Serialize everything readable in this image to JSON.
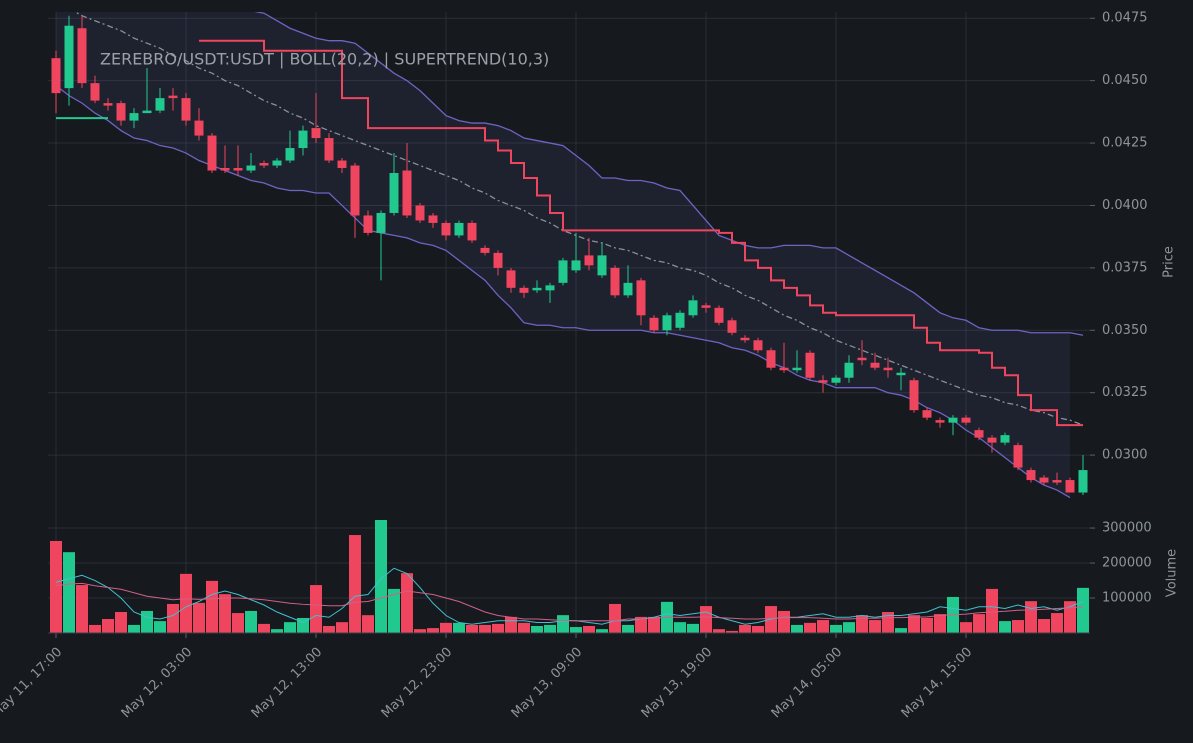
{
  "chart_data": [
    {
      "type": "candlestick",
      "title": "ZEREBRO/USDT:USDT | BOLL(20,2) | SUPERTREND(10,3)",
      "ylabel": "Price",
      "up_color": "#22c98e",
      "down_color": "#f0455f",
      "ylim": [
        0.0274,
        0.04775
      ],
      "yticks": [
        {
          "value": 0.03,
          "label": "0.0300"
        },
        {
          "value": 0.0325,
          "label": "0.0325"
        },
        {
          "value": 0.035,
          "label": "0.0350"
        },
        {
          "value": 0.0375,
          "label": "0.0375"
        },
        {
          "value": 0.04,
          "label": "0.0400"
        },
        {
          "value": 0.0425,
          "label": "0.0425"
        },
        {
          "value": 0.045,
          "label": "0.0450"
        },
        {
          "value": 0.0475,
          "label": "0.0475"
        }
      ],
      "xticks": [
        {
          "value": 0,
          "label": "May 11, 17:00"
        },
        {
          "value": 10,
          "label": "May 12, 03:00"
        },
        {
          "value": 20,
          "label": "May 12, 13:00"
        },
        {
          "value": 30,
          "label": "May 12, 23:00"
        },
        {
          "value": 40,
          "label": "May 13, 09:00"
        },
        {
          "value": 50,
          "label": "May 13, 19:00"
        },
        {
          "value": 60,
          "label": "May 14, 05:00"
        },
        {
          "value": 70,
          "label": "May 14, 15:00"
        }
      ],
      "grid": true,
      "open": [
        0.0459,
        0.0447,
        0.0471,
        0.0449,
        0.0441,
        0.0441,
        0.0434,
        0.0437,
        0.0438,
        0.0444,
        0.0443,
        0.0434,
        0.0428,
        0.0415,
        0.0415,
        0.0414,
        0.0417,
        0.0416,
        0.0418,
        0.0423,
        0.0431,
        0.0427,
        0.0418,
        0.0416,
        0.0396,
        0.0389,
        0.0397,
        0.0414,
        0.04,
        0.0396,
        0.0393,
        0.0388,
        0.0393,
        0.0383,
        0.0381,
        0.0374,
        0.0367,
        0.0366,
        0.0366,
        0.0369,
        0.0374,
        0.038,
        0.0372,
        0.0375,
        0.0364,
        0.037,
        0.0355,
        0.035,
        0.0351,
        0.0356,
        0.036,
        0.0359,
        0.0354,
        0.0347,
        0.0346,
        0.0342,
        0.0335,
        0.0334,
        0.0341,
        0.033,
        0.0329,
        0.0331,
        0.0339,
        0.0337,
        0.0335,
        0.0332,
        0.033,
        0.0318,
        0.0314,
        0.0313,
        0.0315,
        0.031,
        0.0307,
        0.0305,
        0.0304,
        0.0294,
        0.0291,
        0.029,
        0.029,
        0.0285
      ],
      "high": [
        0.0462,
        0.0476,
        0.0476,
        0.0452,
        0.0443,
        0.0442,
        0.0439,
        0.0455,
        0.0447,
        0.0447,
        0.0445,
        0.0439,
        0.0429,
        0.0424,
        0.0424,
        0.0421,
        0.0418,
        0.0419,
        0.043,
        0.0432,
        0.0445,
        0.0429,
        0.0419,
        0.0417,
        0.0398,
        0.0398,
        0.0421,
        0.0425,
        0.0401,
        0.0397,
        0.0394,
        0.0394,
        0.0394,
        0.0384,
        0.0382,
        0.0375,
        0.0368,
        0.037,
        0.0369,
        0.0379,
        0.0389,
        0.0387,
        0.0385,
        0.0376,
        0.0376,
        0.0371,
        0.0356,
        0.0357,
        0.0358,
        0.0364,
        0.0361,
        0.036,
        0.0355,
        0.0348,
        0.0347,
        0.0343,
        0.0345,
        0.0342,
        0.0342,
        0.0332,
        0.0332,
        0.034,
        0.0346,
        0.0341,
        0.0339,
        0.0335,
        0.0331,
        0.0319,
        0.0315,
        0.0316,
        0.0316,
        0.0311,
        0.0308,
        0.0309,
        0.0305,
        0.0295,
        0.0292,
        0.0293,
        0.0291,
        0.03
      ],
      "low": [
        0.0437,
        0.044,
        0.0447,
        0.0441,
        0.0438,
        0.0432,
        0.0431,
        0.0437,
        0.0437,
        0.0438,
        0.0432,
        0.0426,
        0.0413,
        0.0413,
        0.0412,
        0.0413,
        0.0415,
        0.0415,
        0.0417,
        0.042,
        0.0425,
        0.0417,
        0.0413,
        0.0387,
        0.0388,
        0.037,
        0.0396,
        0.0395,
        0.0393,
        0.0391,
        0.0386,
        0.0387,
        0.0385,
        0.038,
        0.0372,
        0.0365,
        0.0363,
        0.0365,
        0.0361,
        0.0368,
        0.0373,
        0.0374,
        0.0371,
        0.0363,
        0.0363,
        0.0352,
        0.0349,
        0.0348,
        0.035,
        0.0355,
        0.0357,
        0.0352,
        0.0348,
        0.0345,
        0.0341,
        0.0334,
        0.0333,
        0.0333,
        0.033,
        0.0325,
        0.0328,
        0.0329,
        0.0336,
        0.0334,
        0.0331,
        0.0326,
        0.0317,
        0.0314,
        0.0311,
        0.0308,
        0.0312,
        0.0306,
        0.0301,
        0.0304,
        0.0294,
        0.0289,
        0.0288,
        0.0288,
        0.0285,
        0.0284
      ],
      "close": [
        0.0445,
        0.0472,
        0.0449,
        0.0442,
        0.044,
        0.0434,
        0.0437,
        0.0438,
        0.0443,
        0.0443,
        0.0434,
        0.0428,
        0.0414,
        0.0414,
        0.0414,
        0.0416,
        0.0416,
        0.0418,
        0.0423,
        0.043,
        0.0427,
        0.0418,
        0.0415,
        0.0396,
        0.0389,
        0.0397,
        0.0413,
        0.0396,
        0.0394,
        0.0393,
        0.0388,
        0.0393,
        0.0386,
        0.0381,
        0.0375,
        0.0367,
        0.0365,
        0.0367,
        0.0368,
        0.0378,
        0.0378,
        0.0376,
        0.038,
        0.0364,
        0.0369,
        0.0356,
        0.035,
        0.0356,
        0.0357,
        0.0362,
        0.0359,
        0.0353,
        0.0349,
        0.0346,
        0.0342,
        0.0335,
        0.0334,
        0.0335,
        0.0331,
        0.0329,
        0.0331,
        0.0337,
        0.0338,
        0.0335,
        0.0334,
        0.0333,
        0.0318,
        0.0315,
        0.0313,
        0.0315,
        0.0313,
        0.0307,
        0.0305,
        0.0308,
        0.0295,
        0.029,
        0.0289,
        0.0289,
        0.0285,
        0.0294
      ],
      "band_fill": "rgba(110,100,200,0.10)",
      "series": [
        {
          "color": "#6f63c4",
          "values": [
            0.0485,
            0.0486,
            0.0487,
            0.0487,
            0.0487,
            0.0487,
            0.0486,
            0.0485,
            0.0484,
            0.0483,
            0.0482,
            0.0481,
            0.048,
            0.048,
            0.0479,
            0.0478,
            0.0477,
            0.0474,
            0.0471,
            0.0469,
            0.0467,
            0.0466,
            0.0466,
            0.0465,
            0.0461,
            0.0457,
            0.0453,
            0.045,
            0.0446,
            0.0441,
            0.0436,
            0.0434,
            0.0433,
            0.0433,
            0.0432,
            0.043,
            0.0427,
            0.0426,
            0.0425,
            0.0424,
            0.042,
            0.0416,
            0.0411,
            0.0411,
            0.041,
            0.041,
            0.0409,
            0.0407,
            0.0406,
            0.04,
            0.0394,
            0.0388,
            0.0386,
            0.0384,
            0.0383,
            0.0383,
            0.0384,
            0.0384,
            0.0384,
            0.0383,
            0.0383,
            0.038,
            0.0377,
            0.0374,
            0.0371,
            0.0368,
            0.0365,
            0.0361,
            0.0357,
            0.0355,
            0.0354,
            0.0351,
            0.035,
            0.035,
            0.035,
            0.0349,
            0.0349,
            0.0349,
            0.0349,
            0.0348
          ]
        },
        {
          "color": "#8a8f98",
          "dash": true,
          "values": [
            0.0481,
            0.0479,
            0.0476,
            0.0474,
            0.0472,
            0.047,
            0.0467,
            0.0465,
            0.0463,
            0.046,
            0.0458,
            0.0455,
            0.0453,
            0.045,
            0.0448,
            0.0445,
            0.0442,
            0.044,
            0.0437,
            0.0435,
            0.0432,
            0.043,
            0.0428,
            0.0426,
            0.0424,
            0.0422,
            0.042,
            0.0418,
            0.0416,
            0.0414,
            0.0412,
            0.041,
            0.0407,
            0.0405,
            0.0402,
            0.04,
            0.0398,
            0.0395,
            0.0393,
            0.039,
            0.0388,
            0.0386,
            0.0385,
            0.0383,
            0.0382,
            0.038,
            0.0378,
            0.0377,
            0.0375,
            0.0374,
            0.0372,
            0.0369,
            0.0367,
            0.0364,
            0.0362,
            0.0359,
            0.0356,
            0.0354,
            0.0351,
            0.0349,
            0.0346,
            0.0344,
            0.0342,
            0.034,
            0.0338,
            0.0336,
            0.0334,
            0.0332,
            0.033,
            0.0328,
            0.0326,
            0.0324,
            0.0323,
            0.0321,
            0.032,
            0.0318,
            0.0317,
            0.0315,
            0.0314,
            0.0312
          ]
        },
        {
          "color": "#6f63c4",
          "values": [
            0.0448,
            0.0444,
            0.0441,
            0.0437,
            0.0434,
            0.043,
            0.0427,
            0.0426,
            0.0424,
            0.0423,
            0.0421,
            0.0418,
            0.0416,
            0.0414,
            0.0412,
            0.041,
            0.0409,
            0.0407,
            0.0406,
            0.0406,
            0.0405,
            0.0405,
            0.04,
            0.0395,
            0.039,
            0.0389,
            0.0388,
            0.0387,
            0.0385,
            0.0384,
            0.0382,
            0.0378,
            0.0374,
            0.037,
            0.0364,
            0.0359,
            0.0353,
            0.0352,
            0.0352,
            0.0351,
            0.0351,
            0.035,
            0.035,
            0.035,
            0.035,
            0.035,
            0.0349,
            0.0349,
            0.0348,
            0.0347,
            0.0346,
            0.0345,
            0.0343,
            0.0342,
            0.034,
            0.0337,
            0.0335,
            0.0332,
            0.033,
            0.0329,
            0.0327,
            0.0327,
            0.0327,
            0.0327,
            0.0325,
            0.0324,
            0.0322,
            0.0319,
            0.0317,
            0.0314,
            0.031,
            0.0307,
            0.0303,
            0.0299,
            0.0295,
            0.0291,
            0.0288,
            0.0286,
            0.0283,
            null
          ]
        },
        {
          "color": "#22c98e",
          "step": true,
          "values": [
            0.0435,
            0.0435,
            0.0435,
            0.0435,
            0.0435,
            null,
            null,
            null,
            null,
            null,
            null,
            null,
            null,
            null,
            null,
            null,
            null,
            null,
            null,
            null,
            null,
            null,
            null,
            null,
            null,
            null,
            null,
            null,
            null,
            null,
            null,
            null,
            null,
            null,
            null,
            null,
            null,
            null,
            null,
            null,
            null,
            null,
            null,
            null,
            null,
            null,
            null,
            null,
            null,
            null,
            null,
            null,
            null,
            null,
            null,
            null,
            null,
            null,
            null,
            null,
            null,
            null,
            null,
            null,
            null,
            null,
            null,
            null,
            null,
            null,
            null,
            null,
            null,
            null,
            null,
            null,
            null,
            null,
            null,
            null
          ]
        },
        {
          "color": "#f0455f",
          "step": true,
          "values": [
            null,
            null,
            null,
            null,
            null,
            null,
            null,
            null,
            null,
            null,
            null,
            0.0466,
            0.0466,
            0.0466,
            0.0466,
            0.0466,
            0.0462,
            0.0462,
            0.0462,
            0.0462,
            0.0462,
            0.0462,
            0.0443,
            0.0443,
            0.0431,
            0.0431,
            0.0431,
            0.0431,
            0.0431,
            0.0431,
            0.0431,
            0.0431,
            0.0431,
            0.0426,
            0.0422,
            0.0417,
            0.0411,
            0.0404,
            0.0397,
            0.039,
            0.039,
            0.039,
            0.039,
            0.039,
            0.039,
            0.039,
            0.039,
            0.039,
            0.039,
            0.039,
            0.039,
            0.0389,
            0.0385,
            0.0378,
            0.0375,
            0.037,
            0.0367,
            0.0364,
            0.036,
            0.0357,
            0.0356,
            0.0356,
            0.0356,
            0.0356,
            0.0356,
            0.0356,
            0.0351,
            0.0345,
            0.0342,
            0.0342,
            0.0342,
            0.0341,
            0.0335,
            0.0332,
            0.0324,
            0.0318,
            0.0318,
            0.0312,
            0.0312,
            0.0312
          ]
        }
      ]
    },
    {
      "type": "bar",
      "ylabel": "Volume",
      "ylim": [
        0,
        323000
      ],
      "yticks": [
        100000,
        200000,
        300000
      ],
      "grid": true,
      "values": [
        263000,
        231000,
        137000,
        23000,
        40000,
        60000,
        23000,
        63000,
        34000,
        83000,
        169000,
        86000,
        149000,
        111000,
        57000,
        63000,
        26000,
        11000,
        31000,
        43000,
        137000,
        20000,
        31000,
        280000,
        51000,
        323000,
        126000,
        171000,
        11000,
        14000,
        29000,
        29000,
        23000,
        23000,
        26000,
        46000,
        29000,
        20000,
        23000,
        51000,
        17000,
        20000,
        11000,
        83000,
        23000,
        46000,
        46000,
        89000,
        31000,
        26000,
        77000,
        11000,
        6000,
        23000,
        20000,
        77000,
        63000,
        23000,
        29000,
        37000,
        23000,
        31000,
        51000,
        37000,
        60000,
        14000,
        51000,
        43000,
        54000,
        103000,
        31000,
        54000,
        126000,
        34000,
        37000,
        91000,
        40000,
        57000,
        91000,
        129000
      ],
      "series": [
        {
          "color": "#3fc1d0",
          "values": [
            145000,
            155000,
            165000,
            150000,
            130000,
            100000,
            60000,
            45000,
            40000,
            50000,
            75000,
            90000,
            110000,
            120000,
            110000,
            95000,
            80000,
            60000,
            45000,
            30000,
            50000,
            45000,
            70000,
            105000,
            110000,
            155000,
            185000,
            170000,
            130000,
            85000,
            50000,
            30000,
            25000,
            30000,
            35000,
            35000,
            35000,
            30000,
            30000,
            35000,
            35000,
            30000,
            25000,
            35000,
            35000,
            40000,
            45000,
            55000,
            50000,
            55000,
            60000,
            45000,
            35000,
            25000,
            30000,
            40000,
            45000,
            45000,
            50000,
            55000,
            45000,
            45000,
            50000,
            45000,
            50000,
            50000,
            55000,
            60000,
            75000,
            70000,
            65000,
            75000,
            75000,
            70000,
            80000,
            70000,
            75000,
            65000,
            75000,
            90000
          ]
        },
        {
          "color": "#d0608a",
          "values": [
            135000,
            140000,
            142000,
            135000,
            130000,
            125000,
            115000,
            105000,
            100000,
            95000,
            98000,
            96000,
            98000,
            100000,
            100000,
            98000,
            95000,
            90000,
            85000,
            82000,
            80000,
            78000,
            78000,
            88000,
            90000,
            100000,
            110000,
            120000,
            115000,
            110000,
            100000,
            90000,
            75000,
            60000,
            50000,
            45000,
            40000,
            40000,
            38000,
            36000,
            35000,
            35000,
            35000,
            35000,
            40000,
            40000,
            42000,
            45000,
            45000,
            45000,
            46000,
            44000,
            42000,
            40000,
            40000,
            42000,
            44000,
            44000,
            44000,
            42000,
            40000,
            40000,
            42000,
            42000,
            44000,
            44000,
            45000,
            46000,
            50000,
            52000,
            54000,
            58000,
            60000,
            62000,
            65000,
            66000,
            68000,
            70000,
            72000,
            75000
          ]
        }
      ]
    }
  ]
}
